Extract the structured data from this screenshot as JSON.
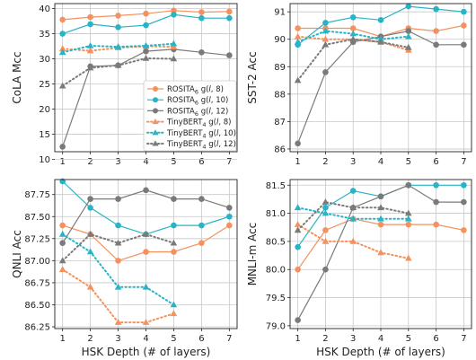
{
  "chart_data": [
    {
      "type": "line",
      "panel": "top-left",
      "xlabel": "",
      "ylabel": "CoLA Mcc",
      "x_ticks": [
        "1",
        "2",
        "3",
        "4",
        "5",
        "6",
        "7"
      ],
      "y_ticks": [
        "10",
        "15",
        "20",
        "25",
        "30",
        "35",
        "40"
      ],
      "ylim": [
        11.5,
        41
      ],
      "grid": true,
      "legend_position": "center-right",
      "series": [
        {
          "name": "ROSITA6 g(l, 8)",
          "color": "#f4915e",
          "style": "solid",
          "marker": "circle",
          "x": [
            1,
            2,
            3,
            4,
            5,
            6,
            7
          ],
          "y": [
            37.8,
            38.3,
            38.6,
            39.0,
            39.6,
            39.3,
            39.4
          ]
        },
        {
          "name": "ROSITA6 g(l, 10)",
          "color": "#26b4c6",
          "style": "solid",
          "marker": "circle",
          "x": [
            1,
            2,
            3,
            4,
            5,
            6,
            7
          ],
          "y": [
            35.0,
            36.9,
            36.3,
            36.7,
            38.8,
            38.1,
            38.1
          ]
        },
        {
          "name": "ROSITA6 g(l, 12)",
          "color": "#7a7a7a",
          "style": "solid",
          "marker": "circle",
          "x": [
            1,
            2,
            3,
            4,
            5,
            6,
            7
          ],
          "y": [
            12.5,
            28.5,
            28.7,
            31.5,
            31.9,
            31.3,
            30.7
          ]
        },
        {
          "name": "TinyBERT4 g(l, 8)",
          "color": "#f4915e",
          "style": "dotted",
          "marker": "triangle",
          "x": [
            1,
            2,
            3,
            4,
            5
          ],
          "y": [
            32.0,
            31.6,
            32.2,
            32.5,
            32.4
          ]
        },
        {
          "name": "TinyBERT4 g(l, 10)",
          "color": "#26b4c6",
          "style": "dotted",
          "marker": "triangle",
          "x": [
            1,
            2,
            3,
            4,
            5
          ],
          "y": [
            31.3,
            32.6,
            32.4,
            32.6,
            33.0
          ]
        },
        {
          "name": "TinyBERT4 g(l, 12)",
          "color": "#7a7a7a",
          "style": "dotted",
          "marker": "triangle",
          "x": [
            1,
            2,
            3,
            4,
            5
          ],
          "y": [
            24.6,
            28.2,
            28.7,
            30.1,
            30.0
          ]
        }
      ]
    },
    {
      "type": "line",
      "panel": "top-right",
      "xlabel": "",
      "ylabel": "SST-2 Acc",
      "x_ticks": [
        "1",
        "2",
        "3",
        "4",
        "5",
        "6",
        "7"
      ],
      "y_ticks": [
        "86",
        "87",
        "88",
        "89",
        "90",
        "91"
      ],
      "ylim": [
        85.9,
        91.3
      ],
      "grid": true,
      "series": [
        {
          "name": "ROSITA6 g(l, 8)",
          "color": "#f4915e",
          "style": "solid",
          "marker": "circle",
          "x": [
            1,
            2,
            3,
            4,
            5,
            6,
            7
          ],
          "y": [
            90.4,
            90.4,
            90.4,
            90.1,
            90.4,
            90.3,
            90.5
          ]
        },
        {
          "name": "ROSITA6 g(l, 10)",
          "color": "#26b4c6",
          "style": "solid",
          "marker": "circle",
          "x": [
            1,
            2,
            3,
            4,
            5,
            6,
            7
          ],
          "y": [
            89.8,
            90.6,
            90.8,
            90.7,
            91.2,
            91.1,
            91.0
          ]
        },
        {
          "name": "ROSITA6 g(l, 12)",
          "color": "#7a7a7a",
          "style": "solid",
          "marker": "circle",
          "x": [
            1,
            2,
            3,
            4,
            5,
            6,
            7
          ],
          "y": [
            86.2,
            88.8,
            89.9,
            90.1,
            90.3,
            89.8,
            89.8
          ]
        },
        {
          "name": "TinyBERT4 g(l, 8)",
          "color": "#f4915e",
          "style": "dotted",
          "marker": "triangle",
          "x": [
            1,
            2,
            3,
            4,
            5
          ],
          "y": [
            90.1,
            90.0,
            90.0,
            89.9,
            89.6
          ]
        },
        {
          "name": "TinyBERT4 g(l, 10)",
          "color": "#26b4c6",
          "style": "dotted",
          "marker": "triangle",
          "x": [
            1,
            2,
            3,
            4,
            5
          ],
          "y": [
            89.9,
            90.3,
            90.2,
            90.0,
            90.1
          ]
        },
        {
          "name": "TinyBERT4 g(l, 12)",
          "color": "#7a7a7a",
          "style": "dotted",
          "marker": "triangle",
          "x": [
            1,
            2,
            3,
            4,
            5
          ],
          "y": [
            88.5,
            89.8,
            90.0,
            89.9,
            89.7
          ]
        }
      ]
    },
    {
      "type": "line",
      "panel": "bottom-left",
      "xlabel": "HSK Depth (# of layers)",
      "ylabel": "QNLI Acc",
      "x_ticks": [
        "1",
        "2",
        "3",
        "4",
        "5",
        "6",
        "7"
      ],
      "y_ticks": [
        "86.25",
        "86.50",
        "86.75",
        "87.00",
        "87.25",
        "87.50",
        "87.75"
      ],
      "ylim": [
        86.23,
        87.92
      ],
      "grid": true,
      "series": [
        {
          "name": "ROSITA6 g(l, 8)",
          "color": "#f4915e",
          "style": "solid",
          "marker": "circle",
          "x": [
            1,
            2,
            3,
            4,
            5,
            6,
            7
          ],
          "y": [
            87.4,
            87.3,
            87.0,
            87.1,
            87.1,
            87.2,
            87.4
          ]
        },
        {
          "name": "ROSITA6 g(l, 10)",
          "color": "#26b4c6",
          "style": "solid",
          "marker": "circle",
          "x": [
            1,
            2,
            3,
            4,
            5,
            6,
            7
          ],
          "y": [
            87.9,
            87.6,
            87.4,
            87.3,
            87.4,
            87.4,
            87.5
          ]
        },
        {
          "name": "ROSITA6 g(l, 12)",
          "color": "#7a7a7a",
          "style": "solid",
          "marker": "circle",
          "x": [
            1,
            2,
            3,
            4,
            5,
            6,
            7
          ],
          "y": [
            87.2,
            87.7,
            87.7,
            87.8,
            87.7,
            87.7,
            87.6
          ]
        },
        {
          "name": "TinyBERT4 g(l, 8)",
          "color": "#f4915e",
          "style": "dotted",
          "marker": "triangle",
          "x": [
            1,
            2,
            3,
            4,
            5
          ],
          "y": [
            86.9,
            86.7,
            86.3,
            86.3,
            86.4
          ]
        },
        {
          "name": "TinyBERT4 g(l, 10)",
          "color": "#26b4c6",
          "style": "dotted",
          "marker": "triangle",
          "x": [
            1,
            2,
            3,
            4,
            5
          ],
          "y": [
            87.3,
            87.1,
            86.7,
            86.7,
            86.5
          ]
        },
        {
          "name": "TinyBERT4 g(l, 12)",
          "color": "#7a7a7a",
          "style": "dotted",
          "marker": "triangle",
          "x": [
            1,
            2,
            3,
            4,
            5
          ],
          "y": [
            87.0,
            87.3,
            87.2,
            87.3,
            87.2
          ]
        }
      ]
    },
    {
      "type": "line",
      "panel": "bottom-right",
      "xlabel": "HSK Depth (# of layers)",
      "ylabel": "MNLI-m Acc",
      "x_ticks": [
        "1",
        "2",
        "3",
        "4",
        "5",
        "6",
        "7"
      ],
      "y_ticks": [
        "79.0",
        "79.5",
        "80.0",
        "80.5",
        "81.0",
        "81.5"
      ],
      "ylim": [
        78.95,
        81.6
      ],
      "grid": true,
      "series": [
        {
          "name": "ROSITA6 g(l, 8)",
          "color": "#f4915e",
          "style": "solid",
          "marker": "circle",
          "x": [
            1,
            2,
            3,
            4,
            5,
            6,
            7
          ],
          "y": [
            80.0,
            80.7,
            80.9,
            80.8,
            80.8,
            80.8,
            80.7
          ]
        },
        {
          "name": "ROSITA6 g(l, 10)",
          "color": "#26b4c6",
          "style": "solid",
          "marker": "circle",
          "x": [
            1,
            2,
            3,
            4,
            5,
            6,
            7
          ],
          "y": [
            80.4,
            81.1,
            81.4,
            81.3,
            81.5,
            81.5,
            81.5
          ]
        },
        {
          "name": "ROSITA6 g(l, 12)",
          "color": "#7a7a7a",
          "style": "solid",
          "marker": "circle",
          "x": [
            1,
            2,
            3,
            4,
            5,
            6,
            7
          ],
          "y": [
            79.1,
            80.0,
            81.1,
            81.3,
            81.5,
            81.2,
            81.2
          ]
        },
        {
          "name": "TinyBERT4 g(l, 8)",
          "color": "#f4915e",
          "style": "dotted",
          "marker": "triangle",
          "x": [
            1,
            2,
            3,
            4,
            5
          ],
          "y": [
            80.8,
            80.5,
            80.5,
            80.3,
            80.2
          ]
        },
        {
          "name": "TinyBERT4 g(l, 10)",
          "color": "#26b4c6",
          "style": "dotted",
          "marker": "triangle",
          "x": [
            1,
            2,
            3,
            4,
            5
          ],
          "y": [
            81.1,
            81.0,
            80.9,
            80.9,
            80.9
          ]
        },
        {
          "name": "TinyBERT4 g(l, 12)",
          "color": "#7a7a7a",
          "style": "dotted",
          "marker": "triangle",
          "x": [
            1,
            2,
            3,
            4,
            5
          ],
          "y": [
            80.7,
            81.2,
            81.1,
            81.1,
            81.0
          ]
        }
      ]
    }
  ],
  "legend": {
    "entries": [
      {
        "base": "ROSITA",
        "sub": "6",
        "suffix": " g(",
        "var": "l",
        "tail": ", 8)",
        "color": "#f4915e",
        "style": "solid",
        "marker": "circle"
      },
      {
        "base": "ROSITA",
        "sub": "6",
        "suffix": " g(",
        "var": "l",
        "tail": ", 10)",
        "color": "#26b4c6",
        "style": "solid",
        "marker": "circle"
      },
      {
        "base": "ROSITA",
        "sub": "6",
        "suffix": " g(",
        "var": "l",
        "tail": ", 12)",
        "color": "#7a7a7a",
        "style": "solid",
        "marker": "circle"
      },
      {
        "base": "TinyBERT",
        "sub": "4",
        "suffix": " g(",
        "var": "l",
        "tail": ", 8)",
        "color": "#f4915e",
        "style": "dotted",
        "marker": "triangle"
      },
      {
        "base": "TinyBERT",
        "sub": "4",
        "suffix": " g(",
        "var": "l",
        "tail": ", 10)",
        "color": "#26b4c6",
        "style": "dotted",
        "marker": "triangle"
      },
      {
        "base": "TinyBERT",
        "sub": "4",
        "suffix": " g(",
        "var": "l",
        "tail": ", 12)",
        "color": "#7a7a7a",
        "style": "dotted",
        "marker": "triangle"
      }
    ]
  }
}
